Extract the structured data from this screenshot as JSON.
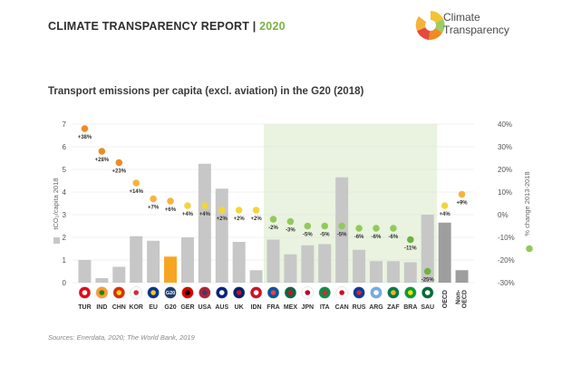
{
  "header": {
    "report_title": "CLIMATE TRANSPARENCY REPORT |",
    "year": "2020",
    "logo_line1": "Climate",
    "logo_line2": "Transparency"
  },
  "source_text": "Sources: Enerdata, 2020; The World Bank, 2019",
  "colors": {
    "bar_default": "#c7c7c7",
    "bar_oecd": "#9e9e9e",
    "bar_highlight": "#f6a623",
    "bg_highlight": "#e9f3df",
    "dot_orange": "#f08a24",
    "dot_lightorange": "#f6b33c",
    "dot_yellow": "#f3d53a",
    "dot_green": "#93c95a",
    "dot_darkgreen": "#6fb23f",
    "year_green": "#7cb342"
  },
  "chart_data": {
    "type": "bar",
    "title": "Transport emissions per capita (excl. aviation) in the G20 (2018)",
    "ylabel": "tCO₂/capita 2018",
    "y2label": "% change 2013-2018",
    "ylim": [
      0,
      7
    ],
    "y2lim": [
      -30,
      40
    ],
    "yticks": [
      "0",
      "1",
      "2",
      "3",
      "4",
      "5",
      "6",
      "7"
    ],
    "y2ticks": [
      "-30%",
      "-20%",
      "-10%",
      "0%",
      "10%",
      "20%",
      "30%",
      "40%"
    ],
    "categories": [
      "TUR",
      "IND",
      "CHN",
      "KOR",
      "EU",
      "G20",
      "GER",
      "USA",
      "AUS",
      "UK",
      "IDN",
      "FRA",
      "MEX",
      "JPN",
      "ITA",
      "CAN",
      "RUS",
      "ARG",
      "ZAF",
      "BRA",
      "SAU",
      "OECD",
      "Non-OECD"
    ],
    "flags": [
      "circle-icon-tr",
      "circle-icon-in",
      "circle-icon-cn",
      "circle-icon-kr",
      "circle-icon-eu",
      "circle-icon-g20",
      "circle-icon-de",
      "circle-icon-us",
      "circle-icon-au",
      "circle-icon-gb",
      "circle-icon-id",
      "circle-icon-fr",
      "circle-icon-mx",
      "circle-icon-jp",
      "circle-icon-it",
      "circle-icon-ca",
      "circle-icon-ru",
      "circle-icon-ar",
      "circle-icon-za",
      "circle-icon-br",
      "circle-icon-sa"
    ],
    "series": [
      {
        "name": "tCO₂/capita 2018",
        "axis": "left",
        "values": [
          1.0,
          0.2,
          0.7,
          2.05,
          1.85,
          1.15,
          2.0,
          5.25,
          4.15,
          1.8,
          0.55,
          1.9,
          1.25,
          1.65,
          1.7,
          4.65,
          1.45,
          0.95,
          0.95,
          0.9,
          3.0,
          2.65,
          0.55
        ]
      },
      {
        "name": "% change 2013-2018",
        "axis": "right",
        "values": [
          38,
          28,
          23,
          14,
          7,
          6,
          4,
          4,
          2,
          2,
          2,
          -2,
          -3,
          -5,
          -5,
          -5,
          -6,
          -6,
          -6,
          -11,
          -25,
          4,
          9
        ],
        "labels": [
          "+38%",
          "+28%",
          "+23%",
          "+14%",
          "+7%",
          "+6%",
          "+4%",
          "+4%",
          "+2%",
          "+2%",
          "+2%",
          "-2%",
          "-3%",
          "-5%",
          "-5%",
          "-5%",
          "-6%",
          "-6%",
          "-6%",
          "-11%",
          "-25%",
          "+4%",
          "+9%"
        ]
      }
    ],
    "highlight_category": "G20",
    "shaded_range": [
      "FRA",
      "SAU"
    ],
    "extra_marker": {
      "value": -15,
      "position": "right-axis"
    }
  }
}
